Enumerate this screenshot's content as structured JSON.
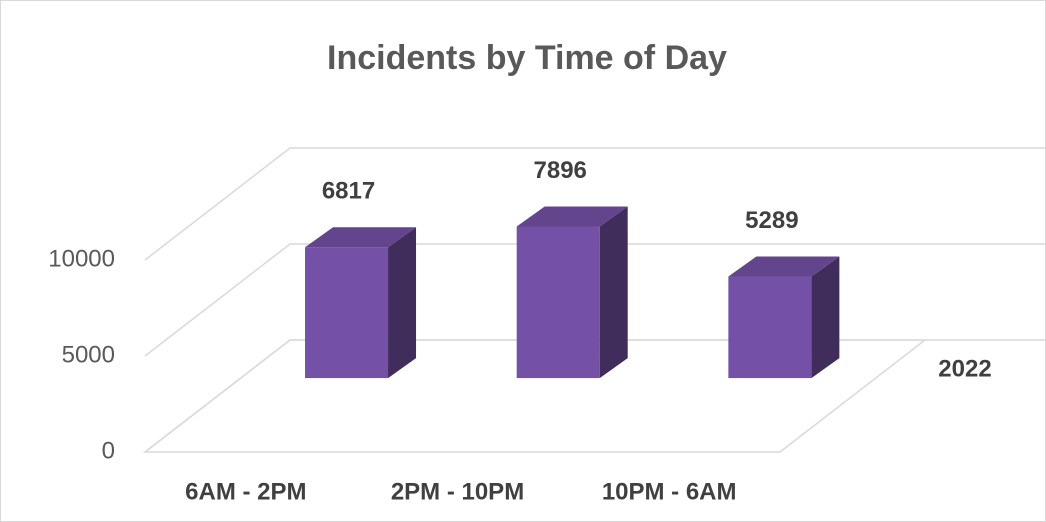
{
  "chart_data": {
    "type": "bar3d",
    "title": "Incidents by Time of Day",
    "categories": [
      "6AM - 2PM",
      "2PM - 10PM",
      "10PM - 6AM"
    ],
    "series": [
      {
        "name": "2022",
        "color": "#7451a6",
        "values": [
          6817,
          7896,
          5289
        ]
      }
    ],
    "ylim": [
      0,
      10000
    ],
    "yticks": [
      0,
      5000,
      10000
    ],
    "grid": true
  }
}
